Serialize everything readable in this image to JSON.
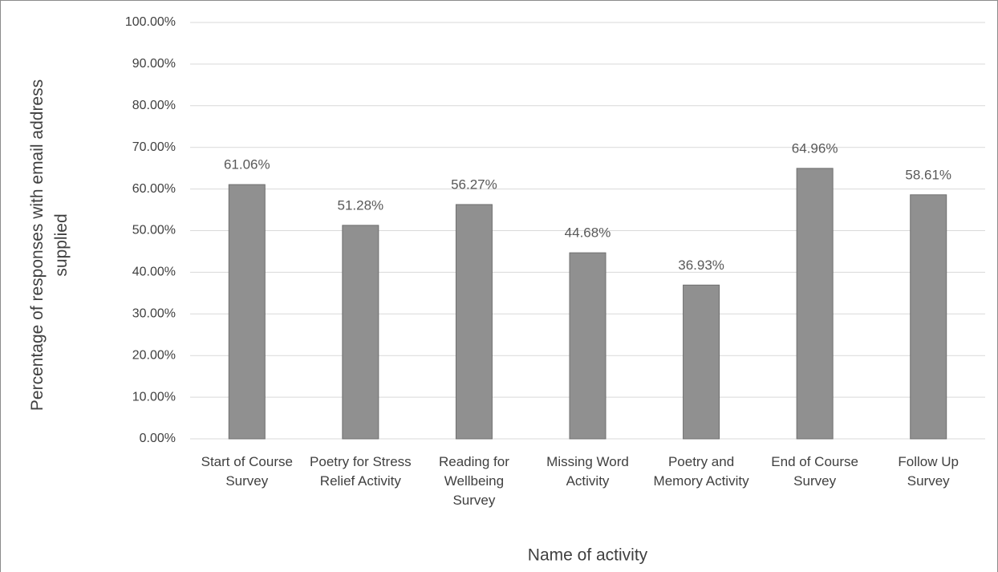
{
  "chart_data": {
    "type": "bar",
    "categories": [
      "Start of Course Survey",
      "Poetry for Stress Relief Activity",
      "Reading for Wellbeing Survey",
      "Missing Word Activity",
      "Poetry and Memory Activity",
      "End of Course Survey",
      "Follow Up Survey"
    ],
    "values": [
      61.06,
      51.28,
      56.27,
      44.68,
      36.93,
      64.96,
      58.61
    ],
    "value_labels": [
      "61.06%",
      "51.28%",
      "56.27%",
      "44.68%",
      "36.93%",
      "64.96%",
      "58.61%"
    ],
    "color": "#909090",
    "ylim": [
      0,
      100
    ],
    "yticks": [
      {
        "value": 0,
        "label": "0.00%"
      },
      {
        "value": 10,
        "label": "10.00%"
      },
      {
        "value": 20,
        "label": "20.00%"
      },
      {
        "value": 30,
        "label": "30.00%"
      },
      {
        "value": 40,
        "label": "40.00%"
      },
      {
        "value": 50,
        "label": "50.00%"
      },
      {
        "value": 60,
        "label": "60.00%"
      },
      {
        "value": 70,
        "label": "70.00%"
      },
      {
        "value": 80,
        "label": "80.00%"
      },
      {
        "value": 90,
        "label": "90.00%"
      },
      {
        "value": 100,
        "label": "100.00%"
      }
    ],
    "grid": true,
    "xlabel": "Name of activity",
    "ylabel": "Percentage of responses with email address supplied"
  }
}
